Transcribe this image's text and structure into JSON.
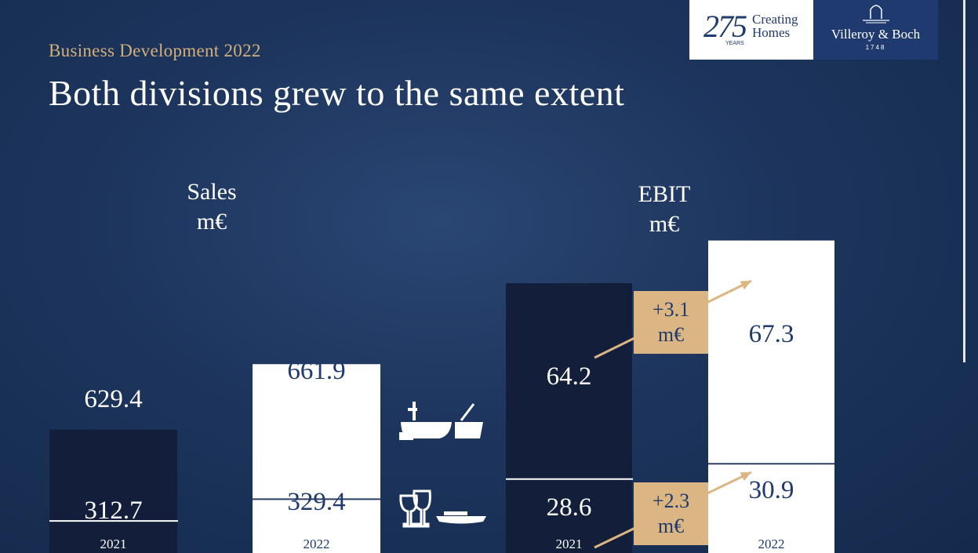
{
  "header": {
    "subtitle": "Business Development 2022",
    "title": "Both divisions grew to the same extent"
  },
  "logo": {
    "anniversary_number": "275",
    "anniversary_years": "YEARS",
    "tagline_line1": "Creating",
    "tagline_line2": "Homes",
    "brand_name": "Villeroy & Boch",
    "brand_year": "1748"
  },
  "icons": [
    "bathroom-icon",
    "dining-icon"
  ],
  "colors": {
    "background": "#1d355d",
    "dark_bar": "#131f3a",
    "white_bar": "#ffffff",
    "accent_gold": "#dcb682",
    "subtitle_gold": "#d3b07a",
    "bar_text_blue": "#1f3a6e"
  },
  "chart_data": [
    {
      "type": "bar",
      "stacked": true,
      "title": "Sales",
      "unit": "m€",
      "categories": [
        "2021",
        "2022"
      ],
      "series": [
        {
          "values": [
            312.7,
            329.4
          ],
          "icon": "dining-icon"
        },
        {
          "values": [
            629.4,
            661.9
          ],
          "icon": "bathroom-icon"
        }
      ]
    },
    {
      "type": "bar",
      "stacked": true,
      "title": "EBIT",
      "unit": "m€",
      "categories": [
        "2021",
        "2022"
      ],
      "series": [
        {
          "values": [
            28.6,
            30.9
          ],
          "icon": "dining-icon"
        },
        {
          "values": [
            64.2,
            67.3
          ],
          "icon": "bathroom-icon"
        }
      ],
      "annotations": [
        {
          "line1": "+3.1",
          "line2": "m€",
          "segment": "bathroom-icon"
        },
        {
          "line1": "+2.3",
          "line2": "m€",
          "segment": "dining-icon"
        }
      ]
    }
  ]
}
